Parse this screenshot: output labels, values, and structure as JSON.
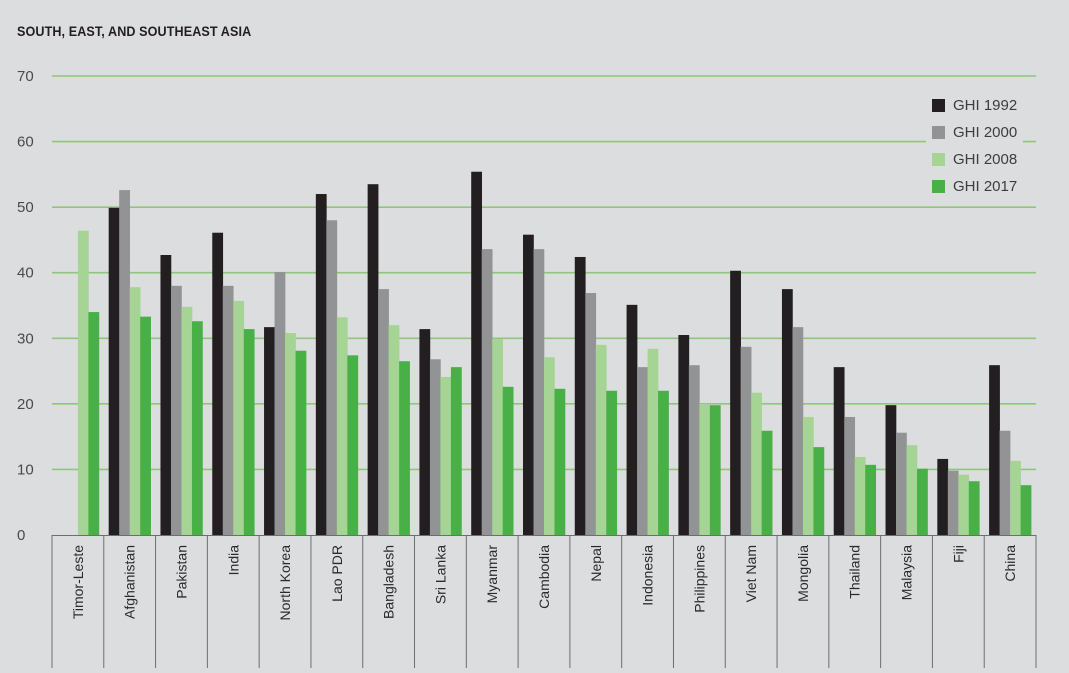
{
  "title": "SOUTH, EAST, AND SOUTHEAST ASIA",
  "legend": [
    {
      "label": "GHI 1992",
      "color": "#231f20"
    },
    {
      "label": "GHI 2000",
      "color": "#929395"
    },
    {
      "label": "GHI 2008",
      "color": "#a5d494"
    },
    {
      "label": "GHI 2017",
      "color": "#49b048"
    }
  ],
  "colors": {
    "background": "#dcddde",
    "gridline": "#8fc67b",
    "axis": "#6d6e70"
  },
  "chart_data": {
    "type": "bar",
    "title": "SOUTH, EAST, AND SOUTHEAST ASIA",
    "xlabel": "",
    "ylabel": "",
    "ylim": [
      0,
      70
    ],
    "yticks": [
      0,
      10,
      20,
      30,
      40,
      50,
      60,
      70
    ],
    "grid": true,
    "legend_position": "upper right",
    "categories": [
      "Timor-Leste",
      "Afghanistan",
      "Pakistan",
      "India",
      "North Korea",
      "Lao PDR",
      "Bangladesh",
      "Sri Lanka",
      "Myanmar",
      "Cambodia",
      "Nepal",
      "Indonesia",
      "Philippines",
      "Viet Nam",
      "Mongolia",
      "Thailand",
      "Malaysia",
      "Fiji",
      "China"
    ],
    "series": [
      {
        "name": "GHI 1992",
        "color": "#231f20",
        "values": [
          null,
          49.9,
          42.7,
          46.1,
          31.7,
          52.0,
          53.5,
          31.4,
          55.4,
          45.8,
          42.4,
          35.1,
          30.5,
          40.3,
          37.5,
          25.6,
          19.8,
          11.6,
          25.9
        ]
      },
      {
        "name": "GHI 2000",
        "color": "#929395",
        "values": [
          null,
          52.6,
          38.0,
          38.0,
          40.1,
          48.0,
          37.5,
          26.8,
          43.6,
          43.6,
          36.9,
          25.6,
          25.9,
          28.7,
          31.7,
          18.0,
          15.6,
          9.8,
          15.9
        ]
      },
      {
        "name": "GHI 2008",
        "color": "#a5d494",
        "values": [
          46.4,
          37.8,
          34.8,
          35.7,
          30.8,
          33.2,
          32.0,
          24.1,
          29.9,
          27.1,
          29.0,
          28.4,
          20.0,
          21.7,
          18.0,
          11.9,
          13.7,
          9.2,
          11.3
        ]
      },
      {
        "name": "GHI 2017",
        "color": "#49b048",
        "values": [
          34.0,
          33.3,
          32.6,
          31.4,
          28.1,
          27.4,
          26.5,
          25.6,
          22.6,
          22.3,
          22.0,
          22.0,
          19.8,
          15.9,
          13.4,
          10.7,
          10.1,
          8.2,
          7.6
        ]
      }
    ]
  }
}
